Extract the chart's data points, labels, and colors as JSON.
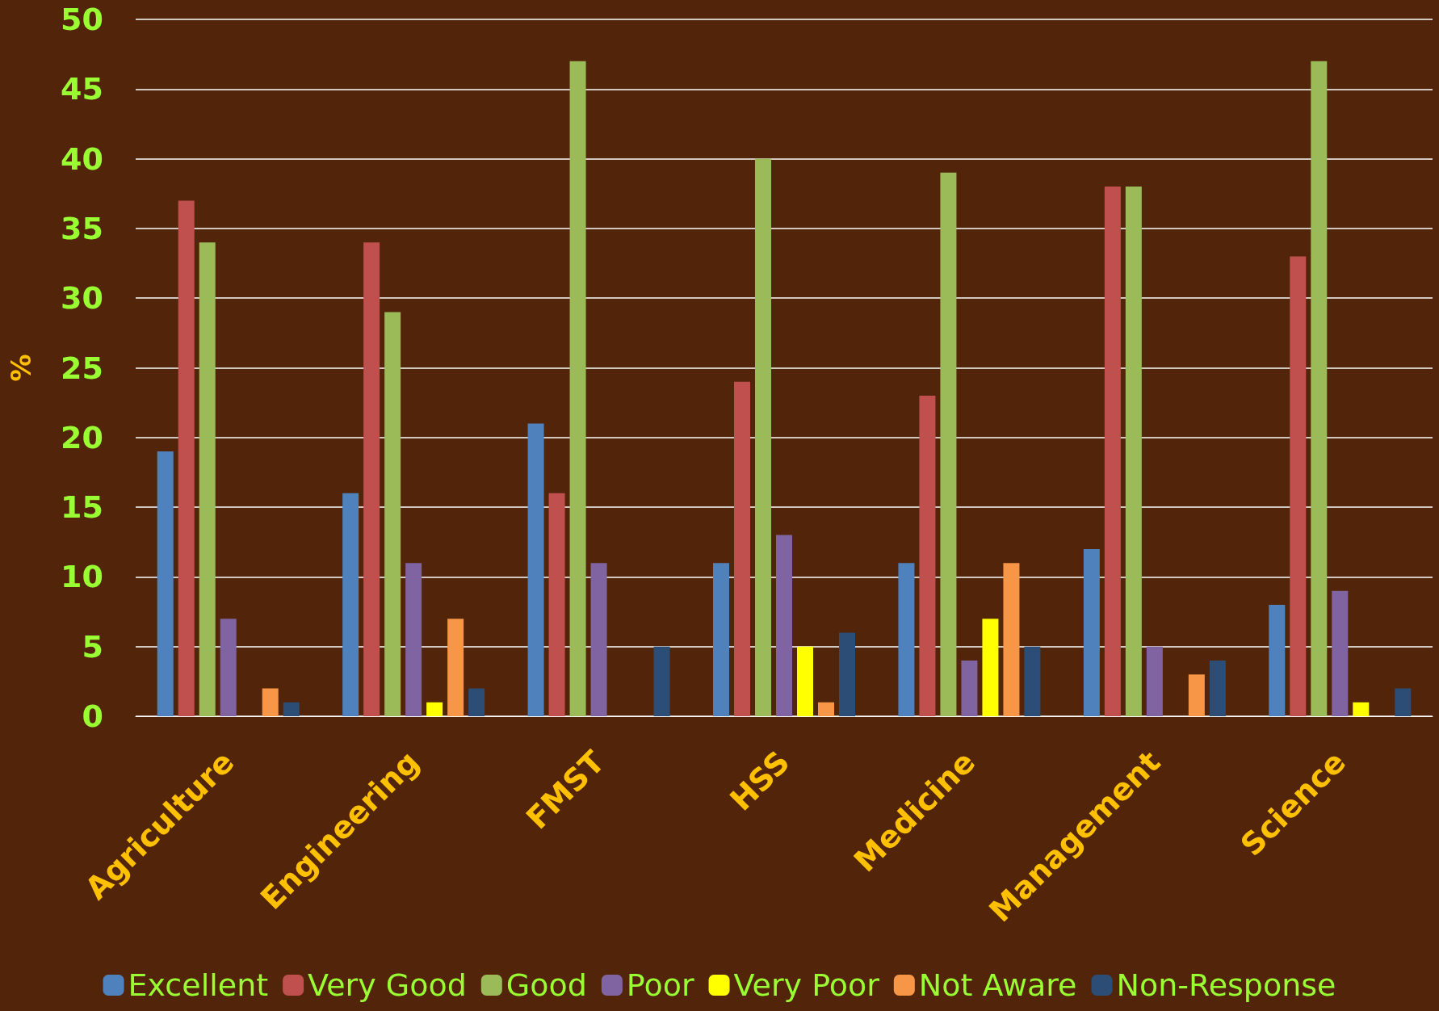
{
  "chart_data": {
    "type": "bar",
    "ylabel": "%",
    "categories": [
      "Agriculture",
      "Engineering",
      "FMST",
      "HSS",
      "Medicine",
      "Management",
      "Science"
    ],
    "series": [
      {
        "name": "Excellent",
        "color": "#4f81bd",
        "values": [
          19,
          16,
          21,
          11,
          11,
          12,
          8
        ]
      },
      {
        "name": "Very Good",
        "color": "#c0504d",
        "values": [
          37,
          34,
          16,
          24,
          23,
          38,
          33
        ]
      },
      {
        "name": "Good",
        "color": "#9bbb59",
        "values": [
          34,
          29,
          47,
          40,
          39,
          38,
          47
        ]
      },
      {
        "name": "Poor",
        "color": "#8064a2",
        "values": [
          7,
          11,
          11,
          13,
          4,
          5,
          9
        ]
      },
      {
        "name": "Very Poor",
        "color": "#ffff00",
        "values": [
          0,
          1,
          0,
          5,
          7,
          0,
          1
        ]
      },
      {
        "name": "Not Aware",
        "color": "#f79646",
        "values": [
          2,
          7,
          0,
          1,
          11,
          3,
          0
        ]
      },
      {
        "name": "Non-Response",
        "color": "#2c4d75",
        "values": [
          1,
          2,
          5,
          6,
          5,
          4,
          2
        ]
      }
    ],
    "ylim": [
      0,
      50
    ],
    "yticks": [
      0,
      5,
      10,
      15,
      20,
      25,
      30,
      35,
      40,
      45,
      50
    ],
    "grid": "y",
    "legend": "bottom"
  }
}
